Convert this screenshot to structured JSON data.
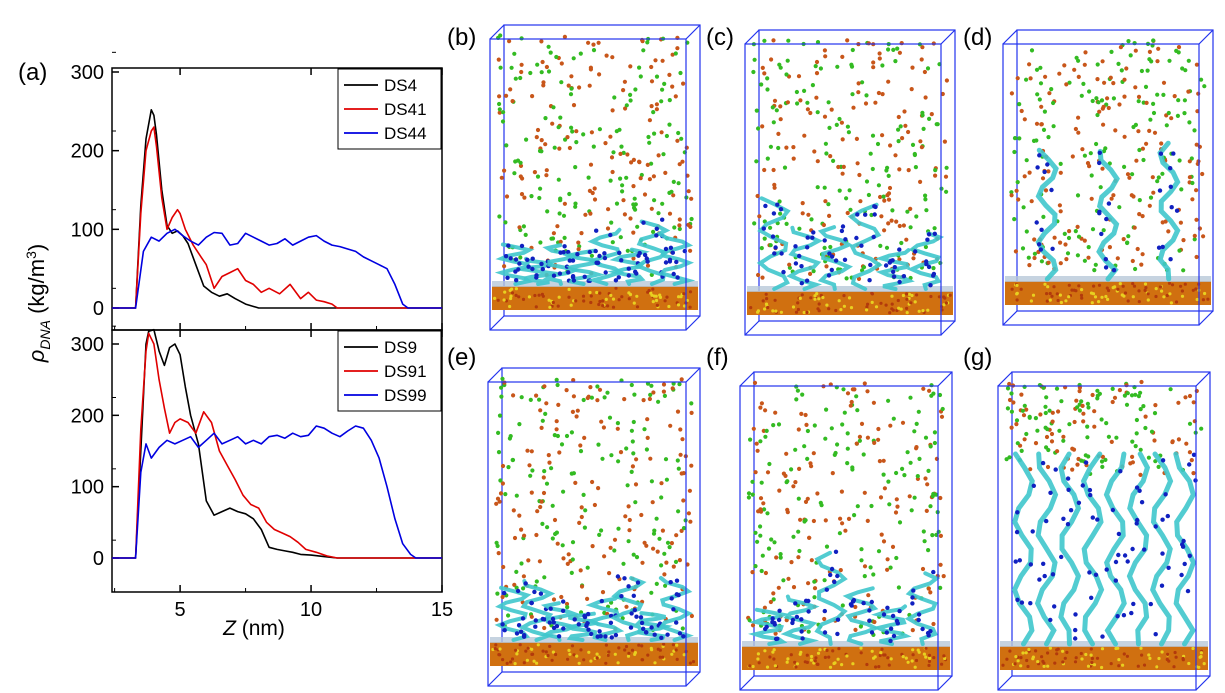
{
  "panel_labels": {
    "a": "(a)",
    "b": "(b)",
    "c": "(c)",
    "d": "(d)",
    "e": "(e)",
    "f": "(f)",
    "g": "(g)"
  },
  "colors": {
    "black": "#000000",
    "red": "#e00000",
    "blue": "#0000e0",
    "box": "#2233ee",
    "ion_green": "#33bb22",
    "ion_orange": "#c8561a",
    "dna_cyan": "#3fc6cc",
    "dna_blue": "#1020c0",
    "substrate_orange": "#d07010",
    "substrate_yellow": "#e8d020"
  },
  "snapshot_strands": {
    "b": "adsorbed",
    "c": "partially-upright",
    "d": "upright-helices",
    "e": "adsorbed-dense",
    "f": "partially-upright-dense",
    "g": "upright-dense-helices"
  },
  "chart_data": [
    {
      "type": "line",
      "panel": "top",
      "xlabel": "Z (nm)",
      "ylabel": "ρDNA (kg/m³)",
      "xlim": [
        2.4,
        15
      ],
      "ylim": [
        -20,
        300
      ],
      "xticks": [
        "5",
        "10",
        "15"
      ],
      "yticks": [
        "0",
        "100",
        "200",
        "300"
      ],
      "legend_position": "top-right",
      "series": [
        {
          "name": "DS4",
          "color": "#000000",
          "x": [
            2.4,
            3.3,
            3.5,
            3.7,
            3.9,
            4.0,
            4.1,
            4.3,
            4.5,
            4.7,
            4.9,
            5.1,
            5.3,
            5.6,
            5.9,
            6.2,
            6.5,
            6.8,
            7.1,
            7.5,
            8.0,
            15.0
          ],
          "y": [
            0,
            0,
            130,
            215,
            252,
            245,
            220,
            150,
            105,
            95,
            98,
            92,
            82,
            55,
            28,
            20,
            15,
            18,
            12,
            5,
            0,
            0
          ]
        },
        {
          "name": "DS41",
          "color": "#e00000",
          "x": [
            2.4,
            3.3,
            3.5,
            3.7,
            3.9,
            4.0,
            4.1,
            4.3,
            4.5,
            4.7,
            4.9,
            5.0,
            5.2,
            5.5,
            5.8,
            6.0,
            6.3,
            6.6,
            6.9,
            7.2,
            7.5,
            7.8,
            8.1,
            8.4,
            8.8,
            9.2,
            9.6,
            9.9,
            10.2,
            10.5,
            10.8,
            11.0,
            15.0
          ],
          "y": [
            0,
            0,
            120,
            200,
            225,
            230,
            205,
            140,
            100,
            115,
            125,
            120,
            100,
            80,
            65,
            55,
            25,
            40,
            45,
            50,
            35,
            30,
            20,
            25,
            18,
            30,
            12,
            20,
            10,
            8,
            5,
            0,
            0
          ]
        },
        {
          "name": "DS44",
          "color": "#0000e0",
          "x": [
            2.4,
            3.3,
            3.6,
            3.9,
            4.2,
            4.5,
            4.8,
            5.1,
            5.4,
            5.7,
            6.0,
            6.3,
            6.6,
            6.9,
            7.2,
            7.5,
            7.8,
            8.1,
            8.4,
            8.7,
            9.0,
            9.3,
            9.6,
            9.9,
            10.2,
            10.5,
            10.8,
            11.1,
            11.4,
            11.7,
            12.0,
            12.3,
            12.6,
            12.9,
            13.2,
            13.5,
            13.7,
            15.0
          ],
          "y": [
            0,
            0,
            72,
            90,
            85,
            95,
            100,
            92,
            85,
            80,
            90,
            96,
            95,
            80,
            82,
            95,
            90,
            85,
            80,
            82,
            88,
            80,
            85,
            90,
            92,
            85,
            80,
            78,
            75,
            72,
            65,
            60,
            55,
            50,
            30,
            5,
            0,
            0
          ]
        }
      ]
    },
    {
      "type": "line",
      "panel": "bottom",
      "xlabel": "Z (nm)",
      "ylabel": "ρDNA (kg/m³)",
      "xlim": [
        2.4,
        15
      ],
      "ylim": [
        -20,
        350
      ],
      "xticks": [
        "5",
        "10",
        "15"
      ],
      "yticks": [
        "0",
        "100",
        "200",
        "300"
      ],
      "legend_position": "top-right",
      "series": [
        {
          "name": "DS9",
          "color": "#000000",
          "x": [
            2.4,
            3.3,
            3.5,
            3.7,
            3.8,
            4.0,
            4.2,
            4.4,
            4.6,
            4.8,
            5.0,
            5.2,
            5.4,
            5.7,
            6.0,
            6.3,
            6.6,
            6.9,
            7.2,
            7.5,
            7.8,
            8.1,
            8.4,
            8.7,
            9.0,
            9.3,
            9.6,
            10.0,
            10.5,
            11.0,
            15.0
          ],
          "y": [
            0,
            0,
            150,
            300,
            318,
            320,
            290,
            270,
            295,
            300,
            285,
            240,
            200,
            160,
            80,
            60,
            65,
            70,
            65,
            62,
            55,
            40,
            15,
            12,
            10,
            8,
            5,
            4,
            2,
            0,
            0
          ]
        },
        {
          "name": "DS91",
          "color": "#e00000",
          "x": [
            2.4,
            3.3,
            3.5,
            3.7,
            3.8,
            4.0,
            4.2,
            4.4,
            4.6,
            4.8,
            5.0,
            5.3,
            5.6,
            5.9,
            6.2,
            6.5,
            6.8,
            7.1,
            7.4,
            7.7,
            8.0,
            8.3,
            8.6,
            8.9,
            9.2,
            9.5,
            9.8,
            10.2,
            10.6,
            11.0,
            12.0,
            15.0
          ],
          "y": [
            0,
            0,
            180,
            290,
            315,
            300,
            250,
            210,
            175,
            190,
            195,
            190,
            175,
            205,
            190,
            150,
            130,
            110,
            88,
            75,
            70,
            50,
            40,
            35,
            30,
            22,
            12,
            8,
            3,
            0,
            0,
            0
          ]
        },
        {
          "name": "DS99",
          "color": "#0000e0",
          "x": [
            2.4,
            3.3,
            3.5,
            3.7,
            3.9,
            4.2,
            4.5,
            4.8,
            5.1,
            5.4,
            5.7,
            6.0,
            6.3,
            6.6,
            6.9,
            7.2,
            7.5,
            7.8,
            8.1,
            8.4,
            8.7,
            9.0,
            9.3,
            9.6,
            9.9,
            10.2,
            10.5,
            10.8,
            11.1,
            11.4,
            11.7,
            12.0,
            12.3,
            12.6,
            12.9,
            13.2,
            13.5,
            13.8,
            14.0,
            15.0
          ],
          "y": [
            0,
            0,
            120,
            160,
            140,
            155,
            165,
            160,
            165,
            170,
            155,
            165,
            175,
            160,
            165,
            170,
            160,
            165,
            160,
            170,
            172,
            168,
            175,
            170,
            172,
            185,
            182,
            175,
            170,
            178,
            185,
            182,
            165,
            140,
            100,
            55,
            20,
            5,
            0,
            0
          ]
        }
      ]
    }
  ]
}
